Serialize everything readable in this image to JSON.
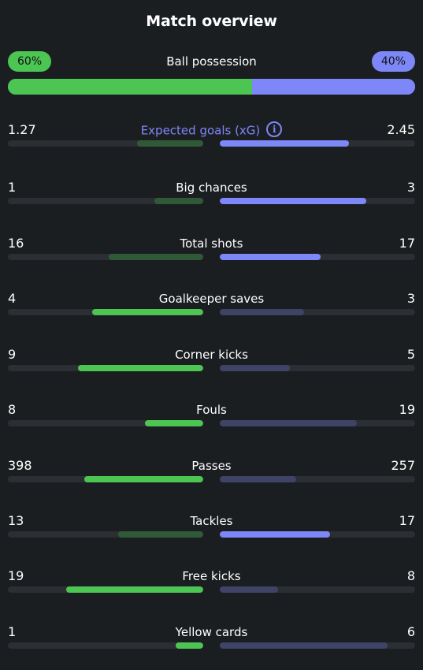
{
  "title": "Match overview",
  "possession": {
    "label": "Ball possession",
    "home_text": "60%",
    "away_text": "40%",
    "home_fraction": 0.6
  },
  "colors": {
    "home_strong": "#4cc552",
    "home_weak": "#305a37",
    "away_strong": "#7e87f8",
    "away_weak": "#3f4466",
    "accent": "#7e87f8"
  },
  "stats": [
    {
      "name": "Expected goals (xG)",
      "home": "1.27",
      "away": "2.45",
      "home_fraction": 0.34,
      "away_fraction": 0.66,
      "winner": "away",
      "info": "i"
    },
    {
      "name": "Big chances",
      "home": "1",
      "away": "3",
      "home_fraction": 0.25,
      "away_fraction": 0.75,
      "winner": "away"
    },
    {
      "name": "Total shots",
      "home": "16",
      "away": "17",
      "home_fraction": 0.485,
      "away_fraction": 0.515,
      "winner": "away"
    },
    {
      "name": "Goalkeeper saves",
      "home": "4",
      "away": "3",
      "home_fraction": 0.57,
      "away_fraction": 0.43,
      "winner": "home"
    },
    {
      "name": "Corner kicks",
      "home": "9",
      "away": "5",
      "home_fraction": 0.64,
      "away_fraction": 0.36,
      "winner": "home"
    },
    {
      "name": "Fouls",
      "home": "8",
      "away": "19",
      "home_fraction": 0.3,
      "away_fraction": 0.7,
      "winner": "home"
    },
    {
      "name": "Passes",
      "home": "398",
      "away": "257",
      "home_fraction": 0.61,
      "away_fraction": 0.39,
      "winner": "home"
    },
    {
      "name": "Tackles",
      "home": "13",
      "away": "17",
      "home_fraction": 0.435,
      "away_fraction": 0.565,
      "winner": "away"
    },
    {
      "name": "Free kicks",
      "home": "19",
      "away": "8",
      "home_fraction": 0.7,
      "away_fraction": 0.3,
      "winner": "home"
    },
    {
      "name": "Yellow cards",
      "home": "1",
      "away": "6",
      "home_fraction": 0.143,
      "away_fraction": 0.857,
      "winner": "home"
    }
  ]
}
